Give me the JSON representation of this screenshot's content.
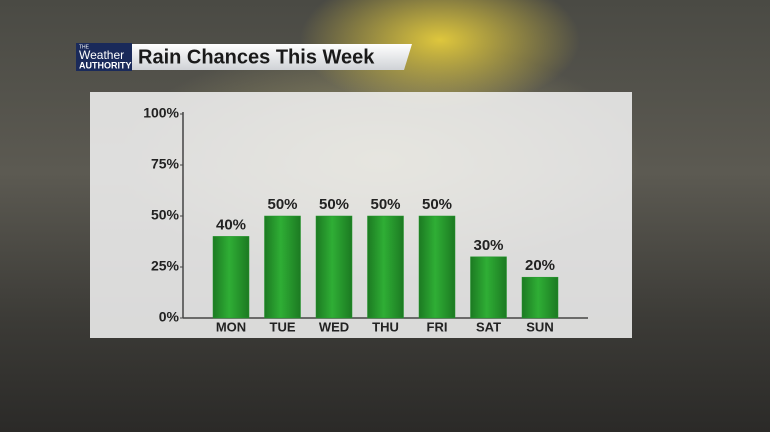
{
  "chart_data": {
    "type": "bar",
    "title": "Rain Chances This Week",
    "logo": [
      "THE",
      "Weather",
      "AUTHORITY"
    ],
    "categories": [
      "MON",
      "TUE",
      "WED",
      "THU",
      "FRI",
      "SAT",
      "SUN"
    ],
    "values": [
      40,
      50,
      50,
      50,
      50,
      30,
      20
    ],
    "value_labels": [
      "40%",
      "50%",
      "50%",
      "50%",
      "50%",
      "30%",
      "20%"
    ],
    "color": "#23962a",
    "ylim": [
      0,
      100
    ],
    "yticks": [
      {
        "value": 0,
        "label": "0%"
      },
      {
        "value": 25,
        "label": "25%"
      },
      {
        "value": 50,
        "label": "50%"
      },
      {
        "value": 75,
        "label": "75%"
      },
      {
        "value": 100,
        "label": "100%"
      }
    ],
    "grid": false
  }
}
